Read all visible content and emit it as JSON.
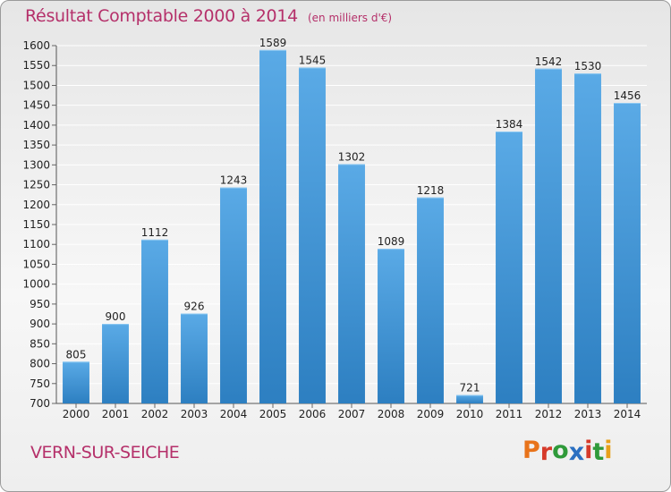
{
  "header": {
    "title": "Résultat Comptable 2000 à 2014",
    "subtitle": "(en milliers d'€)"
  },
  "footer": {
    "city": "VERN-SUR-SEICHE",
    "logo_text": "Proxiti"
  },
  "colors": {
    "title": "#b5306a",
    "bar_light": "#5aaae6",
    "bar_dark": "#2d7fc1",
    "grid": "#ffffff"
  },
  "chart_data": {
    "type": "bar",
    "title": "Résultat Comptable 2000 à 2014",
    "subtitle": "(en milliers d'€)",
    "categories": [
      "2000",
      "2001",
      "2002",
      "2003",
      "2004",
      "2005",
      "2006",
      "2007",
      "2008",
      "2009",
      "2010",
      "2011",
      "2012",
      "2013",
      "2014"
    ],
    "values": [
      805,
      900,
      1112,
      926,
      1243,
      1589,
      1545,
      1302,
      1089,
      1218,
      721,
      1384,
      1542,
      1530,
      1456
    ],
    "ylim": [
      700,
      1600
    ],
    "ytick_step": 50,
    "grid": true,
    "legend": "none"
  }
}
